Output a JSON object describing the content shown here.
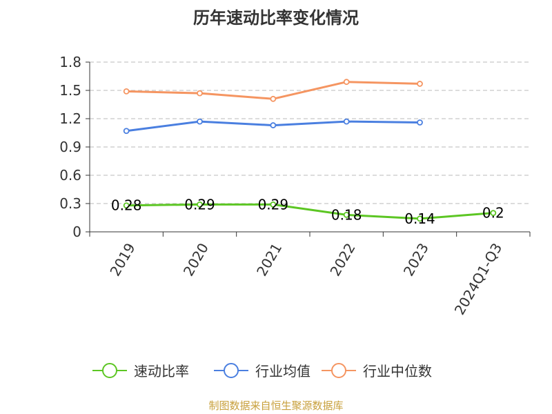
{
  "chart_data": {
    "type": "line",
    "title": "历年速动比率变化情况",
    "categories": [
      "2019",
      "2020",
      "2021",
      "2022",
      "2023",
      "2024Q1-Q3"
    ],
    "ylim": [
      0,
      1.8
    ],
    "yticks": [
      "0",
      "0.3",
      "0.6",
      "0.9",
      "1.2",
      "1.5",
      "1.8"
    ],
    "grid": true,
    "legend_position": "bottom",
    "series": [
      {
        "name": "速动比率",
        "color": "#5cc623",
        "values": [
          0.28,
          0.29,
          0.29,
          0.18,
          0.14,
          0.2
        ],
        "labels": [
          "0.28",
          "0.29",
          "0.29",
          "0.18",
          "0.14",
          "0.2"
        ]
      },
      {
        "name": "行业均值",
        "color": "#4a7fe0",
        "values": [
          1.07,
          1.17,
          1.13,
          1.17,
          1.16,
          null
        ]
      },
      {
        "name": "行业中位数",
        "color": "#f59561",
        "values": [
          1.49,
          1.47,
          1.41,
          1.59,
          1.57,
          null
        ]
      }
    ]
  },
  "footer": {
    "source": "制图数据来自恒生聚源数据库"
  }
}
